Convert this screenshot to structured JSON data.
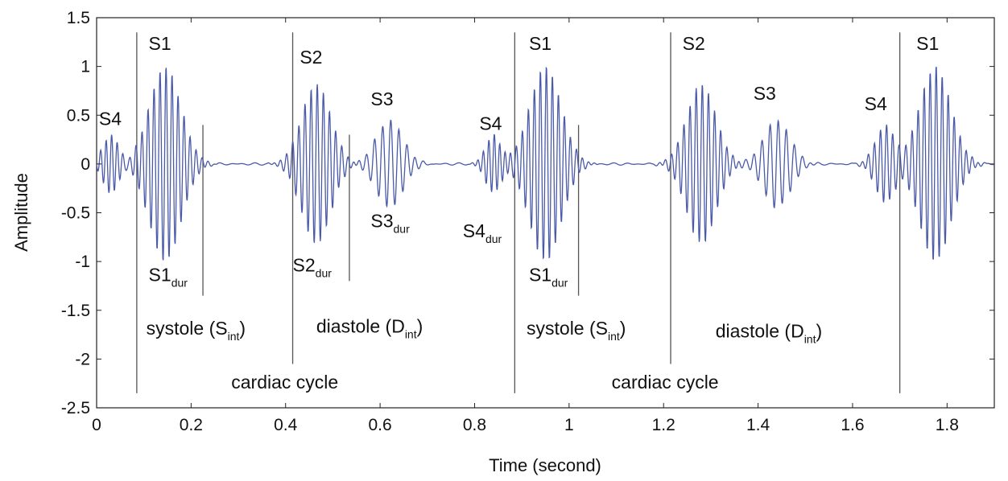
{
  "chart_data": {
    "type": "line",
    "title": "",
    "xlabel": "Time (second)",
    "ylabel": "Amplitude",
    "xlim": [
      0,
      1.9
    ],
    "ylim": [
      -2.5,
      1.5
    ],
    "grid": false,
    "x_ticks": [
      0,
      0.2,
      0.4,
      0.6,
      0.8,
      1,
      1.2,
      1.4,
      1.6,
      1.8
    ],
    "x_tick_labels": [
      "0",
      "0.2",
      "0.4",
      "0.6",
      "0.8",
      "1",
      "1.2",
      "1.4",
      "1.6",
      "1.8"
    ],
    "y_ticks": [
      1.5,
      1,
      0.5,
      0,
      -0.5,
      -1,
      -1.5,
      -2,
      -2.5
    ],
    "y_tick_labels": [
      "1.5",
      "1",
      "0.5",
      "0",
      "-0.5",
      "-1",
      "-1.5",
      "-2",
      "-2.5"
    ],
    "line_color": "#4a5aa8",
    "marker_color": "#555555",
    "bursts": [
      {
        "name": "S4",
        "center": 0.03,
        "half_width": 0.035,
        "amplitude": 0.3,
        "cycles": 6
      },
      {
        "name": "S1",
        "center": 0.145,
        "half_width": 0.07,
        "amplitude": 1.0,
        "cycles": 11
      },
      {
        "name": "S2",
        "center": 0.465,
        "half_width": 0.065,
        "amplitude": 0.82,
        "cycles": 10
      },
      {
        "name": "S3",
        "center": 0.62,
        "half_width": 0.06,
        "amplitude": 0.45,
        "cycles": 7
      },
      {
        "name": "S4",
        "center": 0.84,
        "half_width": 0.035,
        "amplitude": 0.3,
        "cycles": 6
      },
      {
        "name": "S1",
        "center": 0.95,
        "half_width": 0.07,
        "amplitude": 1.0,
        "cycles": 11
      },
      {
        "name": "S2",
        "center": 1.28,
        "half_width": 0.065,
        "amplitude": 0.82,
        "cycles": 10
      },
      {
        "name": "S3",
        "center": 1.44,
        "half_width": 0.06,
        "amplitude": 0.45,
        "cycles": 7
      },
      {
        "name": "S4",
        "center": 1.67,
        "half_width": 0.045,
        "amplitude": 0.4,
        "cycles": 7
      },
      {
        "name": "S1",
        "center": 1.775,
        "half_width": 0.07,
        "amplitude": 1.0,
        "cycles": 11
      }
    ],
    "markers": [
      {
        "x": 0.085,
        "y_top": 1.35,
        "y_bottom": -2.35
      },
      {
        "x": 0.225,
        "y_top": 0.4,
        "y_bottom": -1.35
      },
      {
        "x": 0.415,
        "y_top": 1.35,
        "y_bottom": -2.05
      },
      {
        "x": 0.535,
        "y_top": 0.3,
        "y_bottom": -1.2
      },
      {
        "x": 0.885,
        "y_top": 1.35,
        "y_bottom": -2.35
      },
      {
        "x": 1.02,
        "y_top": 0.4,
        "y_bottom": -1.35
      },
      {
        "x": 1.215,
        "y_top": 1.35,
        "y_bottom": -2.05
      },
      {
        "x": 1.7,
        "y_top": 1.35,
        "y_bottom": -2.35
      }
    ],
    "annotations": [
      {
        "text": "S4",
        "sub": "",
        "x": 0.005,
        "y": 0.4
      },
      {
        "text": "S1",
        "sub": "",
        "x": 0.11,
        "y": 1.17
      },
      {
        "text": "S1",
        "sub": "dur",
        "x": 0.11,
        "y": -1.2
      },
      {
        "text": "systole (S",
        "sub": "int",
        "tail": ")",
        "x": 0.105,
        "y": -1.75
      },
      {
        "text": "S2",
        "sub": "",
        "x": 0.43,
        "y": 1.03
      },
      {
        "text": "S2",
        "sub": "dur",
        "x": 0.415,
        "y": -1.1
      },
      {
        "text": "diastole (D",
        "sub": "int",
        "tail": ")",
        "x": 0.465,
        "y": -1.73
      },
      {
        "text": "S3",
        "sub": "",
        "x": 0.58,
        "y": 0.6
      },
      {
        "text": "S3",
        "sub": "dur",
        "x": 0.58,
        "y": -0.65
      },
      {
        "text": "cardiac cycle",
        "sub": "",
        "x": 0.285,
        "y": -2.3
      },
      {
        "text": "S4",
        "sub": "",
        "x": 0.81,
        "y": 0.35
      },
      {
        "text": "S4",
        "sub": "dur",
        "x": 0.775,
        "y": -0.75
      },
      {
        "text": "S1",
        "sub": "",
        "x": 0.915,
        "y": 1.17
      },
      {
        "text": "S1",
        "sub": "dur",
        "x": 0.915,
        "y": -1.2
      },
      {
        "text": "systole (S",
        "sub": "int",
        "tail": ")",
        "x": 0.91,
        "y": -1.75
      },
      {
        "text": "S2",
        "sub": "",
        "x": 1.24,
        "y": 1.17
      },
      {
        "text": "S3",
        "sub": "",
        "x": 1.39,
        "y": 0.66
      },
      {
        "text": "cardiac cycle",
        "sub": "",
        "x": 1.09,
        "y": -2.3
      },
      {
        "text": "S4",
        "sub": "",
        "x": 1.625,
        "y": 0.55
      },
      {
        "text": "diastole (D",
        "sub": "int",
        "tail": ")",
        "x": 1.31,
        "y": -1.78
      },
      {
        "text": "S1",
        "sub": "",
        "x": 1.735,
        "y": 1.17
      }
    ]
  }
}
